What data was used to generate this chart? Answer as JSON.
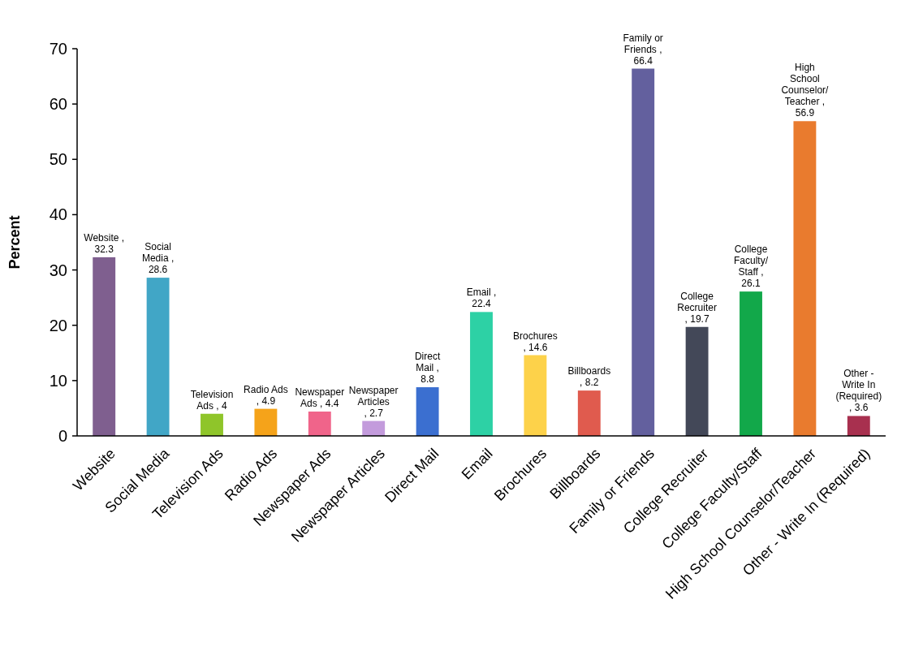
{
  "chart_data": {
    "type": "bar",
    "ylabel": "Percent",
    "categories": [
      "Website",
      "Social Media",
      "Television Ads",
      "Radio Ads",
      "Newspaper Ads",
      "Newspaper Articles",
      "Direct Mail",
      "Email",
      "Brochures",
      "Billboards",
      "Family or Friends",
      "College Recruiter",
      "College Faculty/Staff",
      "High School Counselor/Teacher",
      "Other - Write In (Required)"
    ],
    "values": [
      32.3,
      28.6,
      4,
      4.9,
      4.4,
      2.7,
      8.8,
      22.4,
      14.6,
      8.2,
      66.4,
      19.7,
      26.1,
      56.9,
      3.6
    ],
    "colors": [
      "#7f5f8f",
      "#41a6c6",
      "#8fc52a",
      "#f5a31a",
      "#f0648a",
      "#c39bdc",
      "#3b6fd0",
      "#2dd1a5",
      "#fdd24a",
      "#e05b4e",
      "#63609e",
      "#434858",
      "#12a84a",
      "#e97b2e",
      "#a8304f"
    ],
    "value_labels": [
      "Website , 32.3",
      "Social Media , 28.6",
      "Television Ads , 4",
      "Radio Ads , 4.9",
      "Newspaper Ads , 4.4",
      "Newspaper Articles , 2.7",
      "Direct Mail , 8.8",
      "Email , 22.4",
      "Brochures , 14.6",
      "Billboards , 8.2",
      "Family or Friends , 66.4",
      "College Recruiter , 19.7",
      "College Faculty/Staff , 26.1",
      "High School Counselor/Teacher , 56.9",
      "Other - Write In (Required) , 3.6"
    ],
    "ylim": [
      0,
      70
    ],
    "yticks": [
      0,
      10,
      20,
      30,
      40,
      50,
      60,
      70
    ],
    "grid": false
  }
}
